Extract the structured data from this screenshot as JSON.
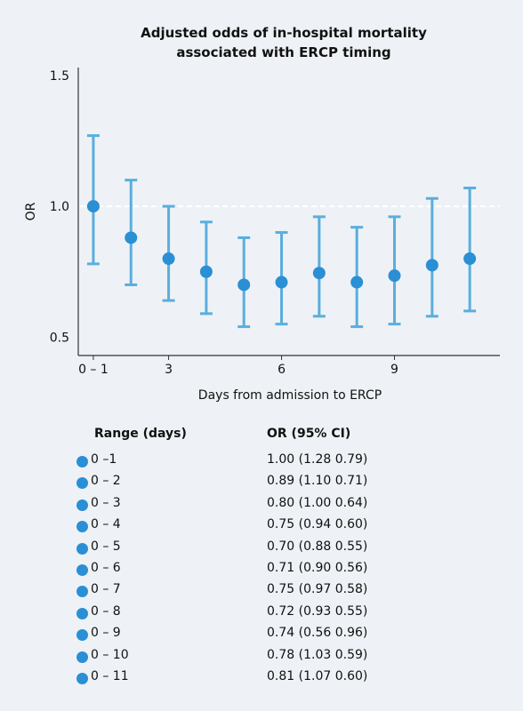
{
  "chart_data": {
    "type": "scatter",
    "title": [
      "Adjusted odds of in-hospital mortality",
      "associated with ERCP timing"
    ],
    "xlabel": "Days from admission to ERCP",
    "ylabel": "OR",
    "x_ticks": [
      {
        "x": 1,
        "label": "0 – 1"
      },
      {
        "x": 3,
        "label": "3"
      },
      {
        "x": 6,
        "label": "6"
      },
      {
        "x": 9,
        "label": "9"
      }
    ],
    "y_ticks": [
      {
        "y": 0.5,
        "label": "0.5"
      },
      {
        "y": 1.0,
        "label": "1.0"
      },
      {
        "y": 1.5,
        "label": "1.5"
      }
    ],
    "xlim": [
      0.6,
      11.8
    ],
    "ylim": [
      0.43,
      1.53
    ],
    "reference_line": 1.0,
    "points": [
      {
        "x": 1,
        "or": 1.0,
        "upper": 1.27,
        "lower": 0.78
      },
      {
        "x": 2,
        "or": 0.88,
        "upper": 1.1,
        "lower": 0.7
      },
      {
        "x": 3,
        "or": 0.8,
        "upper": 1.0,
        "lower": 0.64
      },
      {
        "x": 4,
        "or": 0.75,
        "upper": 0.94,
        "lower": 0.59
      },
      {
        "x": 5,
        "or": 0.7,
        "upper": 0.88,
        "lower": 0.54
      },
      {
        "x": 6,
        "or": 0.71,
        "upper": 0.9,
        "lower": 0.55
      },
      {
        "x": 7,
        "or": 0.745,
        "upper": 0.96,
        "lower": 0.58
      },
      {
        "x": 8,
        "or": 0.71,
        "upper": 0.92,
        "lower": 0.54
      },
      {
        "x": 9,
        "or": 0.735,
        "upper": 0.96,
        "lower": 0.55
      },
      {
        "x": 10,
        "or": 0.775,
        "upper": 1.03,
        "lower": 0.58
      },
      {
        "x": 11,
        "or": 0.8,
        "upper": 1.07,
        "lower": 0.6
      }
    ],
    "colors": {
      "marker": "#2a8fd4",
      "errorbar": "#5aaedd",
      "axis": "#333333",
      "reference": "#ffffff"
    }
  },
  "table": {
    "header_range": "Range (days)",
    "header_or": "OR (95% CI)",
    "rows": [
      {
        "range": "0 –1",
        "or": "1.00 (1.28 0.79)"
      },
      {
        "range": "0 – 2",
        "or": "0.89 (1.10 0.71)"
      },
      {
        "range": "0 – 3",
        "or": "0.80 (1.00 0.64)"
      },
      {
        "range": "0 – 4",
        "or": "0.75 (0.94 0.60)"
      },
      {
        "range": "0 – 5",
        "or": "0.70 (0.88 0.55)"
      },
      {
        "range": "0 – 6",
        "or": "0.71 (0.90 0.56)"
      },
      {
        "range": "0 – 7",
        "or": "0.75 (0.97 0.58)"
      },
      {
        "range": "0 – 8",
        "or": "0.72 (0.93 0.55)"
      },
      {
        "range": "0 – 9",
        "or": "0.74 (0.56 0.96)"
      },
      {
        "range": "0 – 10",
        "or": "0.78 (1.03 0.59)"
      },
      {
        "range": "0 – 11",
        "or": "0.81 (1.07 0.60)"
      }
    ]
  }
}
